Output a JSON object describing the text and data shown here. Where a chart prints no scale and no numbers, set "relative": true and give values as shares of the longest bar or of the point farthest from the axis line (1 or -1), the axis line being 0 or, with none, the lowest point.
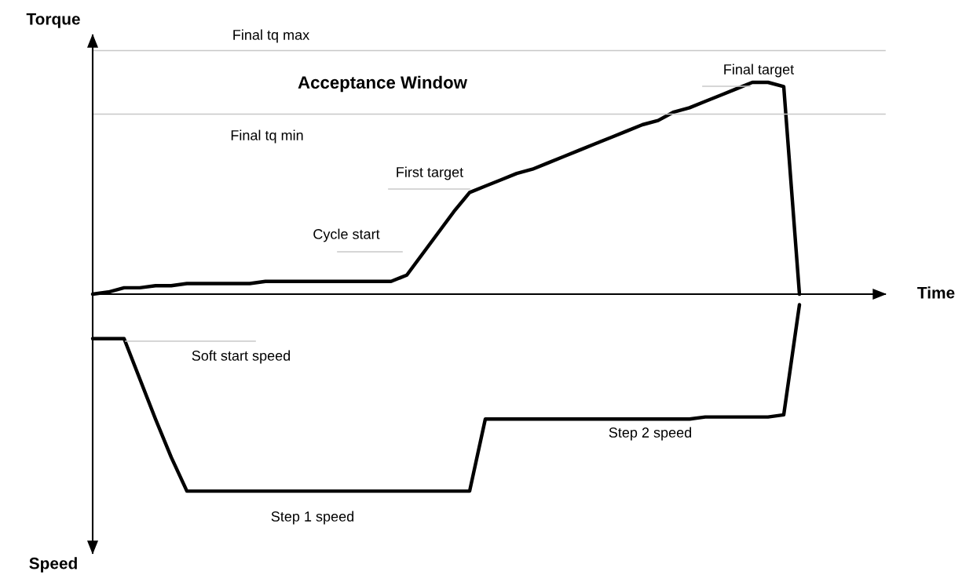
{
  "chart_data": {
    "type": "line",
    "relative": true,
    "ylabel": "Torque",
    "categories": [
      null,
      null,
      null,
      null,
      null,
      null,
      null,
      null,
      null,
      null,
      null,
      null,
      null,
      null,
      null,
      null,
      null,
      null,
      null,
      null,
      null,
      null,
      null,
      null,
      null,
      null,
      null,
      null,
      null,
      null,
      null,
      null,
      null,
      null,
      null,
      null,
      null,
      null,
      null,
      null,
      null,
      null,
      null,
      null,
      null,
      null
    ],
    "series": [
      {
        "color": "#000000",
        "values": [
          0,
          0.01,
          0.03,
          0.03,
          0.04,
          0.04,
          0.05,
          0.05,
          0.05,
          0.05,
          0.05,
          0.06,
          0.06,
          0.06,
          0.06,
          0.06,
          0.06,
          0.06,
          0.06,
          0.06,
          0.09,
          0.19,
          0.29,
          0.39,
          0.48,
          0.51,
          0.54,
          0.57,
          0.59,
          0.62,
          0.65,
          0.68,
          0.71,
          0.74,
          0.77,
          0.8,
          0.82,
          0.86,
          0.88,
          0.91,
          0.94,
          0.97,
          1.0,
          1.0,
          0.98,
          0
        ]
      },
      {
        "color": "#000000",
        "values": [
          -0.21,
          -0.21,
          -0.21,
          -0.4,
          -0.59,
          -0.77,
          -0.93,
          -0.93,
          -0.93,
          -0.93,
          -0.93,
          -0.93,
          -0.93,
          -0.93,
          -0.93,
          -0.93,
          -0.93,
          -0.93,
          -0.93,
          -0.93,
          -0.93,
          -0.93,
          -0.93,
          -0.93,
          -0.93,
          -0.59,
          -0.59,
          -0.59,
          -0.59,
          -0.59,
          -0.59,
          -0.59,
          -0.59,
          -0.59,
          -0.59,
          -0.59,
          -0.59,
          -0.59,
          -0.59,
          -0.58,
          -0.58,
          -0.58,
          -0.58,
          -0.58,
          -0.57,
          -0.05
        ]
      }
    ],
    "ref_lines": [
      {
        "axis": "y",
        "value": 1.15,
        "label": "Final tq max",
        "color": "#c8c8c8"
      },
      {
        "axis": "y",
        "value": 0.85,
        "label": "Final tq min",
        "color": "#c8c8c8"
      }
    ],
    "annotations": [
      "Acceptance Window",
      "Final target",
      "First target",
      "Cycle start",
      "Soft start speed",
      "Step 2 speed",
      "Step 1 speed",
      "Speed",
      "Time"
    ],
    "line_style": "solid",
    "marker": "none"
  }
}
